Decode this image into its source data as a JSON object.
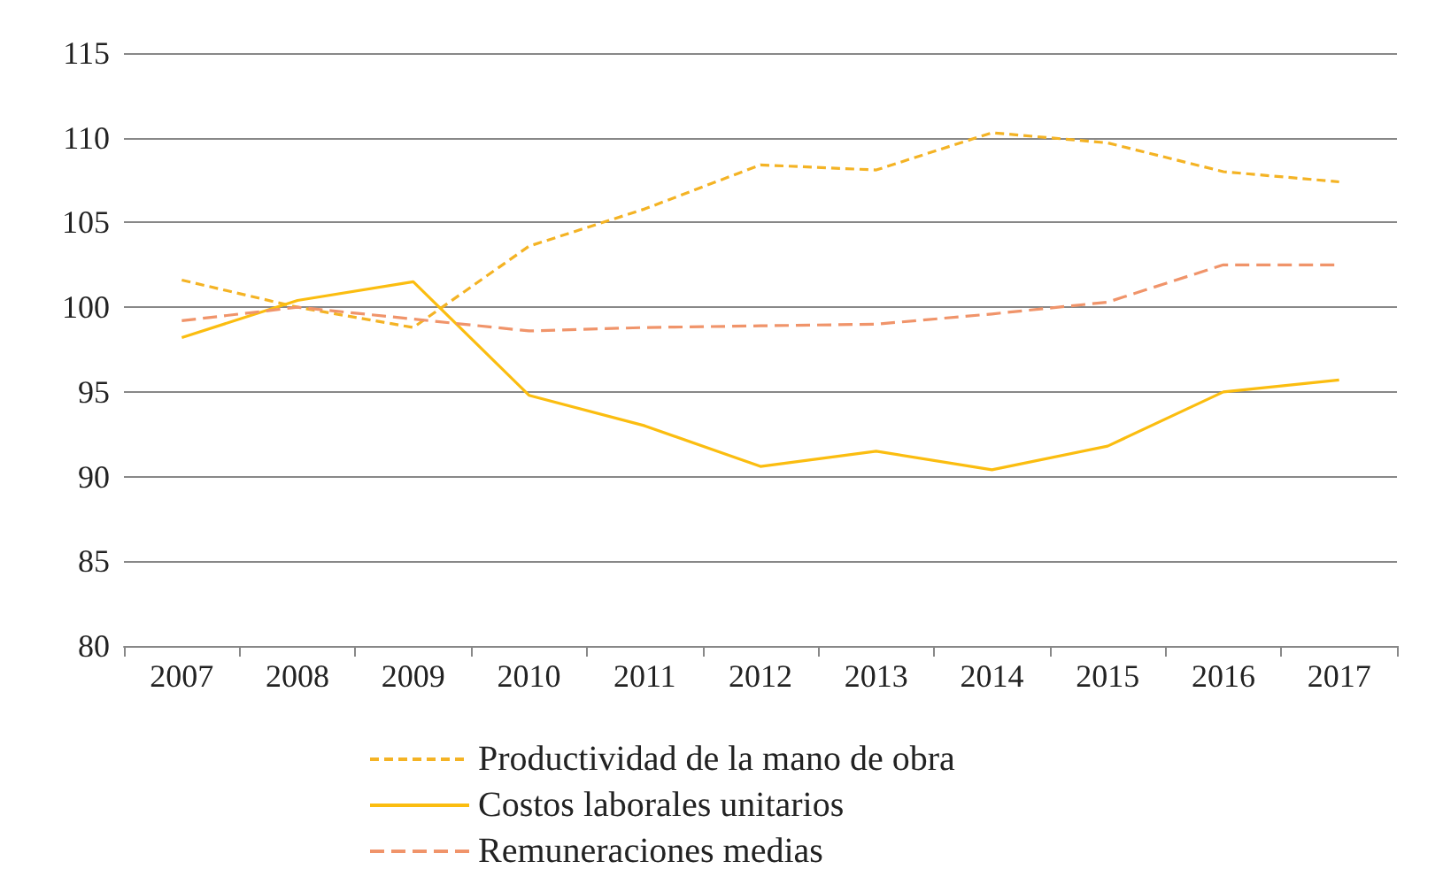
{
  "chart_data": {
    "type": "line",
    "categories": [
      "2007",
      "2008",
      "2009",
      "2010",
      "2011",
      "2012",
      "2013",
      "2014",
      "2015",
      "2016",
      "2017"
    ],
    "series": [
      {
        "name": "Productividad de la mano de obra",
        "color": "#f4b324",
        "line_style": "dotted",
        "values": [
          101.6,
          100,
          98.8,
          103.6,
          105.8,
          108.4,
          108.1,
          110.3,
          109.7,
          108.0,
          107.4
        ]
      },
      {
        "name": "Costos laborales unitarios",
        "color": "#fbbd10",
        "line_style": "solid",
        "values": [
          98.2,
          100.4,
          101.5,
          94.8,
          93.0,
          90.6,
          91.5,
          90.4,
          91.8,
          95.0,
          95.7
        ]
      },
      {
        "name": "Remuneraciones medias",
        "color": "#f0946a",
        "line_style": "dashed",
        "values": [
          99.2,
          100.0,
          99.3,
          98.6,
          98.8,
          98.9,
          99.0,
          99.6,
          100.3,
          102.5,
          102.5
        ]
      }
    ],
    "ylim": [
      80,
      115
    ],
    "yticks": [
      80,
      85,
      90,
      95,
      100,
      105,
      110,
      115
    ],
    "grid": "y",
    "legend": "bottom",
    "marker": "none"
  }
}
